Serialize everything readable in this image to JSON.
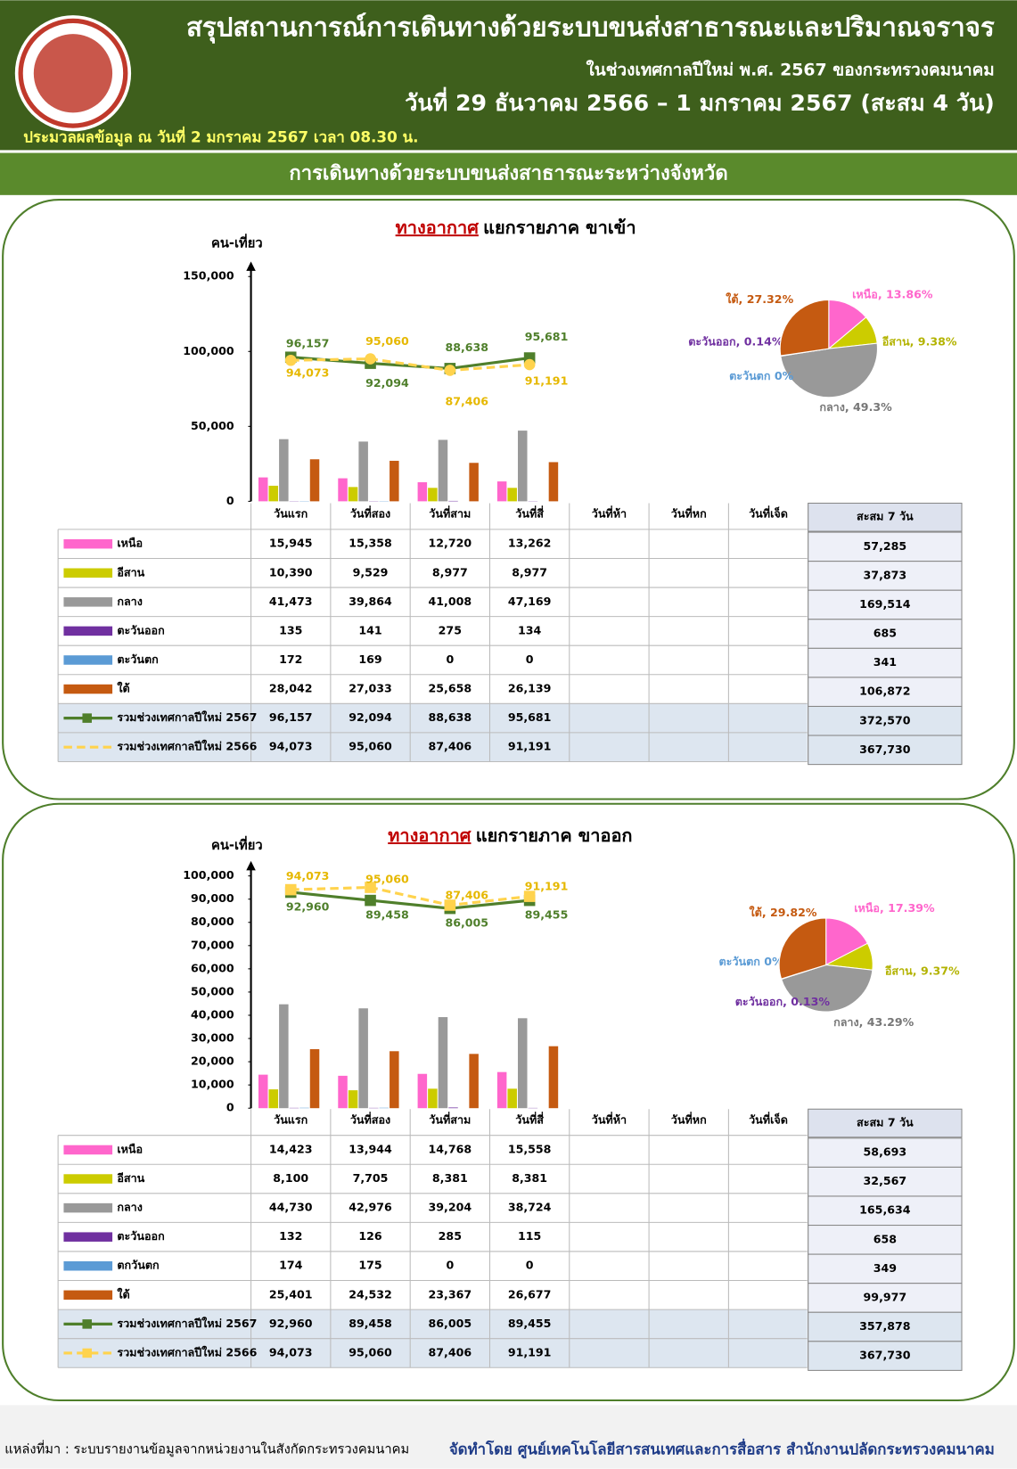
{
  "header": {
    "title": "สรุปสถานการณ์การเดินทางด้วยระบบขนส่งสาธารณะและปริมาณจราจร",
    "subtitle": "ในช่วงเทศกาลปีใหม่ พ.ศ. 2567 ของกระทรวงคมนาคม",
    "date": "วันที่ 29 ธันวาคม 2566 – 1 มกราคม 2567 (สะสม 4 วัน)",
    "processed": "ประมวลผลข้อมูล ณ วันที่  2 มกราคม 2567 เวลา 08.30 น.",
    "section": "การเดินทางด้วยระบบขนส่งสาธารณะระหว่างจังหวัด"
  },
  "chart_data": [
    {
      "type": "bar",
      "title_mode": "ทางอากาศ",
      "title": "แยกรายภาค ขาเข้า",
      "y_label": "คน-เที่ยว",
      "total_header": "สะสม 7 วัน",
      "categories": [
        "วันแรก",
        "วันที่สอง",
        "วันที่สาม",
        "วันที่สี่",
        "วันที่ห้า",
        "วันที่หก",
        "วันที่เจ็ด"
      ],
      "ylim": [
        0,
        150000
      ],
      "yticks": [
        0,
        {
          "value": 50000,
          "label": "50,000"
        },
        {
          "value": 100000,
          "label": "100,000"
        },
        {
          "value": 150000,
          "label": "150,000"
        }
      ],
      "series": [
        {
          "name": "เหนือ",
          "color": "#ff66cc",
          "values": [
            15945,
            15358,
            12720,
            13262,
            null,
            null,
            null
          ],
          "value_labels": [
            "15,945",
            "15,358",
            "12,720",
            "13,262",
            null,
            null,
            null
          ],
          "total": "57,285"
        },
        {
          "name": "อีสาน",
          "color": "#cccc00",
          "values": [
            10390,
            9529,
            8977,
            8977,
            null,
            null,
            null
          ],
          "value_labels": [
            "10,390",
            "9,529",
            "8,977",
            "8,977",
            null,
            null,
            null
          ],
          "total": "37,873"
        },
        {
          "name": "กลาง",
          "color": "#999999",
          "values": [
            41473,
            39864,
            41008,
            47169,
            null,
            null,
            null
          ],
          "value_labels": [
            "41,473",
            "39,864",
            "41,008",
            "47,169",
            null,
            null,
            null
          ],
          "total": "169,514"
        },
        {
          "name": "ตะวันออก",
          "color": "#7030a0",
          "values": [
            135,
            141,
            275,
            134,
            null,
            null,
            null
          ],
          "value_labels": [
            "135",
            "141",
            "275",
            "134",
            null,
            null,
            null
          ],
          "total": "685"
        },
        {
          "name": "ตะวันตก",
          "color": "#5b9bd5",
          "values": [
            172,
            169,
            0,
            0,
            null,
            null,
            null
          ],
          "value_labels": [
            "172",
            "169",
            "0",
            "0",
            null,
            null,
            null
          ],
          "total": "341"
        },
        {
          "name": "ใต้",
          "color": "#c55a11",
          "values": [
            28042,
            27033,
            25658,
            26139,
            null,
            null,
            null
          ],
          "value_labels": [
            "28,042",
            "27,033",
            "25,658",
            "26,139",
            null,
            null,
            null
          ],
          "total": "106,872"
        },
        {
          "name": "รวมช่วงเทศกาลปีใหม่ 2567",
          "type": "line",
          "color": "#4f7f2b",
          "marker": "square",
          "dashed": false,
          "values": [
            96157,
            92094,
            88638,
            95681,
            null,
            null,
            null
          ],
          "value_labels": [
            "96,157",
            "92,094",
            "88,638",
            "95,681",
            null,
            null,
            null
          ],
          "total": "372,570"
        },
        {
          "name": "รวมช่วงเทศกาลปีใหม่ 2566",
          "type": "line",
          "color": "#ffd34d",
          "marker": "circle",
          "dashed": true,
          "values": [
            94073,
            95060,
            87406,
            91191,
            null,
            null,
            null
          ],
          "value_labels": [
            "94,073",
            "95,060",
            "87,406",
            "91,191",
            null,
            null,
            null
          ],
          "total": "367,730"
        }
      ]
    },
    {
      "type": "pie",
      "values": [
        13.86,
        9.38,
        49.3,
        0.14,
        0,
        27.32
      ],
      "value_labels": [
        "เหนือ, 13.86%",
        "อีสาน, 9.38%",
        "กลาง, 49.3%",
        "ตะวันออก, 0.14%",
        "ตะวันตก 0%",
        "ใต้, 27.32%"
      ],
      "colors": [
        "#ff66cc",
        "#cccc00",
        "#999999",
        "#7030a0",
        "#5b9bd5",
        "#c55a11"
      ]
    },
    {
      "type": "bar",
      "title_mode": "ทางอากาศ",
      "title": "แยกรายภาค ขาออก",
      "y_label": "คน-เที่ยว",
      "total_header": "สะสม 7 วัน",
      "categories": [
        "วันแรก",
        "วันที่สอง",
        "วันที่สาม",
        "วันที่สี่",
        "วันที่ห้า",
        "วันที่หก",
        "วันที่เจ็ด"
      ],
      "ylim": [
        0,
        100000
      ],
      "yticks": [
        0,
        {
          "value": 10000,
          "label": "10,000"
        },
        {
          "value": 20000,
          "label": "20,000"
        },
        {
          "value": 30000,
          "label": "30,000"
        },
        {
          "value": 40000,
          "label": "40,000"
        },
        {
          "value": 50000,
          "label": "50,000"
        },
        {
          "value": 60000,
          "label": "60,000"
        },
        {
          "value": 70000,
          "label": "70,000"
        },
        {
          "value": 80000,
          "label": "80,000"
        },
        {
          "value": 90000,
          "label": "90,000"
        },
        {
          "value": 100000,
          "label": "100,000"
        }
      ],
      "series": [
        {
          "name": "เหนือ",
          "color": "#ff66cc",
          "values": [
            14423,
            13944,
            14768,
            15558,
            null,
            null,
            null
          ],
          "value_labels": [
            "14,423",
            "13,944",
            "14,768",
            "15,558",
            null,
            null,
            null
          ],
          "total": "58,693"
        },
        {
          "name": "อีสาน",
          "color": "#cccc00",
          "values": [
            8100,
            7705,
            8381,
            8381,
            null,
            null,
            null
          ],
          "value_labels": [
            "8,100",
            "7,705",
            "8,381",
            "8,381",
            null,
            null,
            null
          ],
          "total": "32,567"
        },
        {
          "name": "กลาง",
          "color": "#999999",
          "values": [
            44730,
            42976,
            39204,
            38724,
            null,
            null,
            null
          ],
          "value_labels": [
            "44,730",
            "42,976",
            "39,204",
            "38,724",
            null,
            null,
            null
          ],
          "total": "165,634"
        },
        {
          "name": "ตะวันออก",
          "color": "#7030a0",
          "values": [
            132,
            126,
            285,
            115,
            null,
            null,
            null
          ],
          "value_labels": [
            "132",
            "126",
            "285",
            "115",
            null,
            null,
            null
          ],
          "total": "658"
        },
        {
          "name": "ตกวันตก",
          "color": "#5b9bd5",
          "values": [
            174,
            175,
            0,
            0,
            null,
            null,
            null
          ],
          "value_labels": [
            "174",
            "175",
            "0",
            "0",
            null,
            null,
            null
          ],
          "total": "349"
        },
        {
          "name": "ใต้",
          "color": "#c55a11",
          "values": [
            25401,
            24532,
            23367,
            26677,
            null,
            null,
            null
          ],
          "value_labels": [
            "25,401",
            "24,532",
            "23,367",
            "26,677",
            null,
            null,
            null
          ],
          "total": "99,977"
        },
        {
          "name": "รวมช่วงเทศกาลปีใหม่ 2567",
          "type": "line",
          "color": "#4f7f2b",
          "marker": "square",
          "dashed": false,
          "values": [
            92960,
            89458,
            86005,
            89455,
            null,
            null,
            null
          ],
          "value_labels": [
            "92,960",
            "89,458",
            "86,005",
            "89,455",
            null,
            null,
            null
          ],
          "total": "357,878"
        },
        {
          "name": "รวมช่วงเทศกาลปีใหม่ 2566",
          "type": "line",
          "color": "#ffd34d",
          "marker": "square",
          "dashed": true,
          "values": [
            94073,
            95060,
            87406,
            91191,
            null,
            null,
            null
          ],
          "value_labels": [
            "94,073",
            "95,060",
            "87,406",
            "91,191",
            null,
            null,
            null
          ],
          "total": "367,730"
        }
      ]
    },
    {
      "type": "pie",
      "values": [
        17.39,
        9.37,
        43.29,
        0.13,
        0,
        29.82
      ],
      "value_labels": [
        "เหนือ, 17.39%",
        "อีสาน, 9.37%",
        "กลาง, 43.29%",
        "ตะวันออก, 0.13%",
        "ตะวันตก 0%",
        "ใต้, 29.82%"
      ],
      "colors": [
        "#ff66cc",
        "#cccc00",
        "#999999",
        "#7030a0",
        "#5b9bd5",
        "#c55a11"
      ]
    }
  ],
  "footer": {
    "source": "แหล่งที่มา : ระบบรายงานข้อมูลจากหน่วยงานในสังกัดกระทรวงคมนาคม",
    "credit": "จัดทำโดย ศูนย์เทคโนโลยีสารสนเทศและการสื่อสาร สำนักงานปลัดกระทรวงคมนาคม"
  }
}
